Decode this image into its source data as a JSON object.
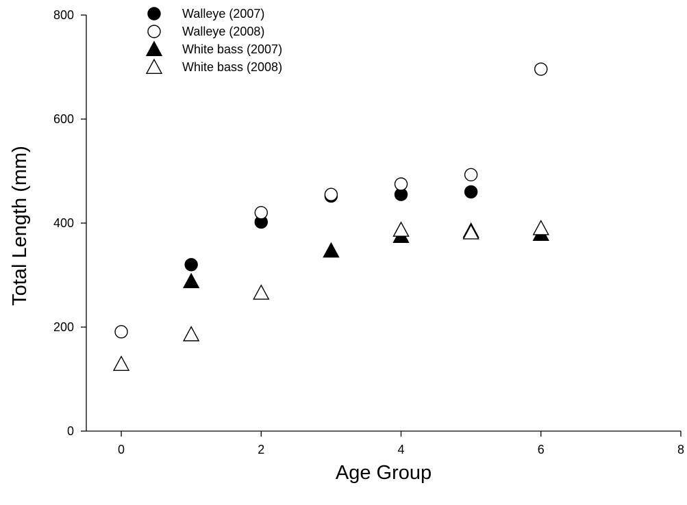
{
  "chart_data": {
    "type": "scatter",
    "xlabel": "Age Group",
    "ylabel": "Total Length (mm)",
    "xlim": [
      -0.5,
      8
    ],
    "ylim": [
      0,
      800
    ],
    "x_ticks": [
      "0",
      "2",
      "4",
      "6",
      "8"
    ],
    "y_ticks": [
      "0",
      "200",
      "400",
      "600",
      "800"
    ],
    "legend_position": "top-left",
    "grid": false,
    "series": [
      {
        "name": "Walleye (2007)",
        "marker": "circle-filled",
        "points": [
          [
            1,
            320
          ],
          [
            2,
            402
          ],
          [
            3,
            452
          ],
          [
            4,
            455
          ],
          [
            5,
            460
          ]
        ]
      },
      {
        "name": "Walleye (2008)",
        "marker": "circle-open",
        "points": [
          [
            0,
            191
          ],
          [
            2,
            420
          ],
          [
            3,
            455
          ],
          [
            4,
            475
          ],
          [
            5,
            493
          ],
          [
            6,
            696
          ]
        ]
      },
      {
        "name": "White bass (2007)",
        "marker": "triangle-filled",
        "points": [
          [
            1,
            288
          ],
          [
            3,
            347
          ],
          [
            4,
            375
          ],
          [
            5,
            385
          ],
          [
            6,
            379
          ]
        ]
      },
      {
        "name": "White bass (2008)",
        "marker": "triangle-open",
        "points": [
          [
            0,
            129
          ],
          [
            1,
            186
          ],
          [
            2,
            266
          ],
          [
            4,
            387
          ],
          [
            5,
            382
          ],
          [
            6,
            390
          ]
        ]
      }
    ]
  }
}
